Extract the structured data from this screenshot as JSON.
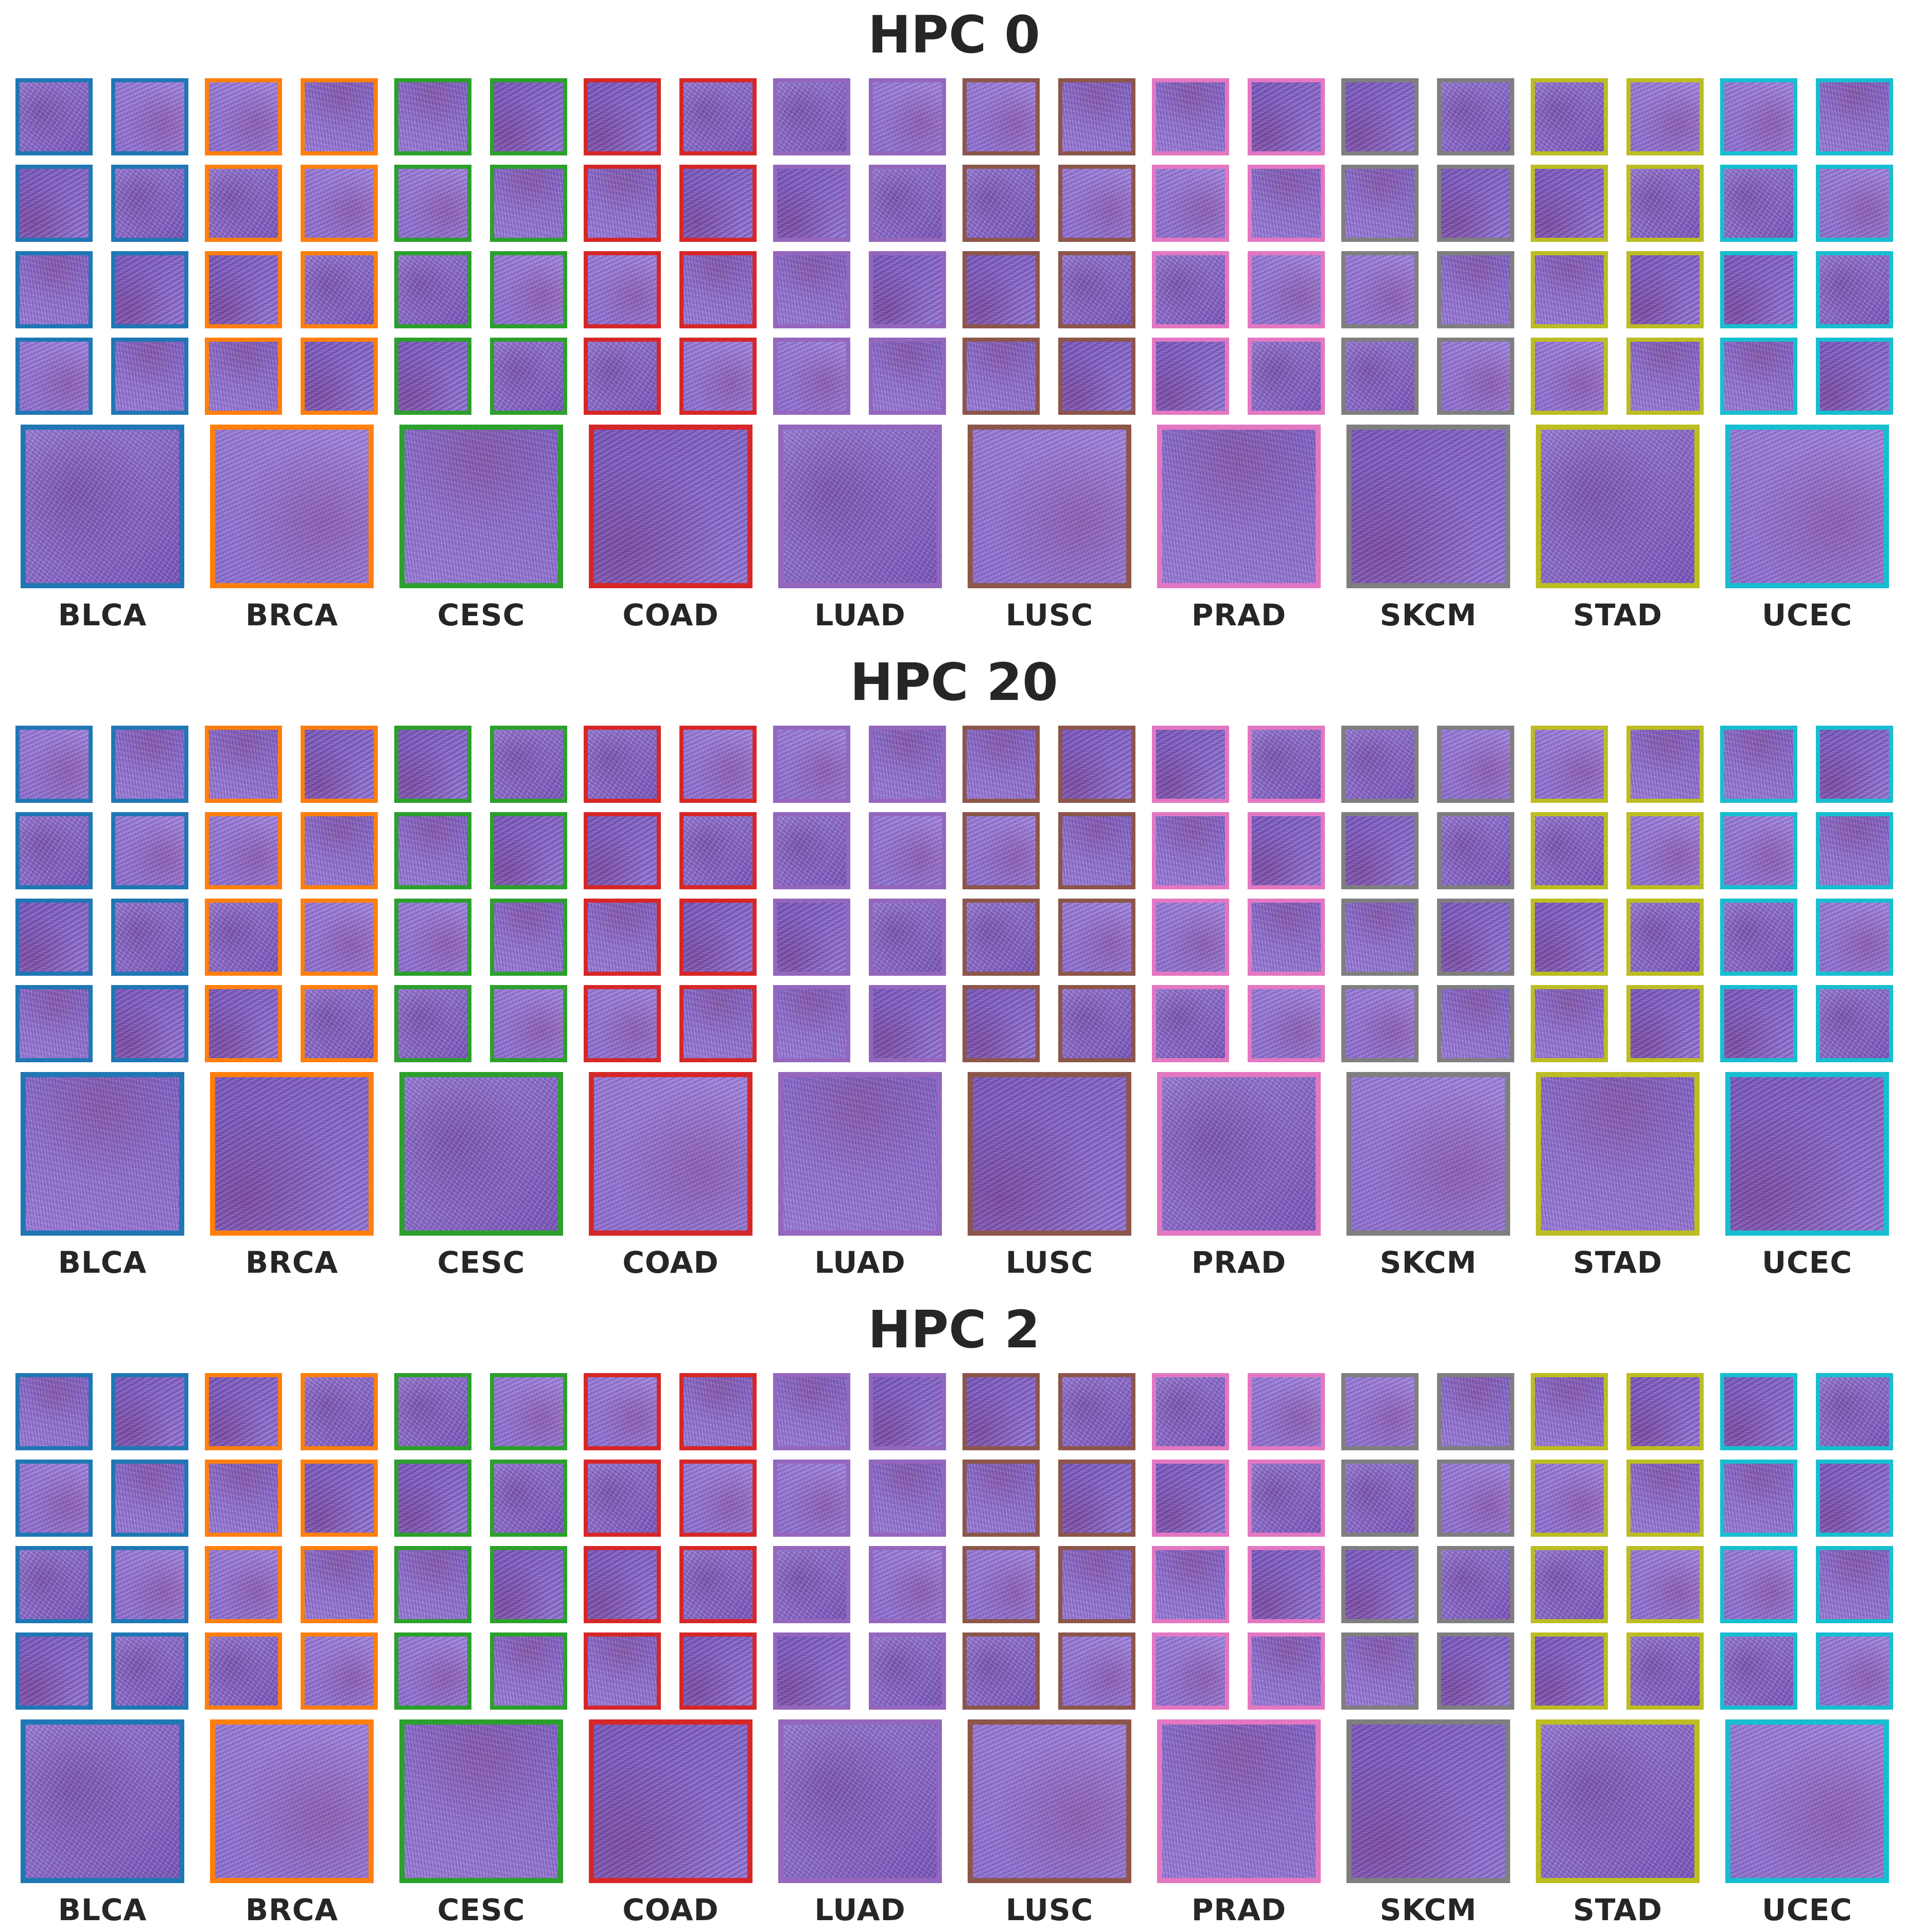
{
  "panels": [
    {
      "title": "HPC 0"
    },
    {
      "title": "HPC 20"
    },
    {
      "title": "HPC 2"
    }
  ],
  "cancer_types": [
    {
      "name": "BLCA",
      "color": "#1f77b4"
    },
    {
      "name": "BRCA",
      "color": "#ff7f0e"
    },
    {
      "name": "CESC",
      "color": "#2ca02c"
    },
    {
      "name": "COAD",
      "color": "#d62728"
    },
    {
      "name": "LUAD",
      "color": "#9467bd"
    },
    {
      "name": "LUSC",
      "color": "#8c564b"
    },
    {
      "name": "PRAD",
      "color": "#e377c2"
    },
    {
      "name": "SKCM",
      "color": "#7f7f7f"
    },
    {
      "name": "STAD",
      "color": "#bcbd22"
    },
    {
      "name": "UCEC",
      "color": "#17becf"
    }
  ],
  "tiles_per_group": {
    "small_rows": 4,
    "small_cols": 2,
    "large": 1
  }
}
